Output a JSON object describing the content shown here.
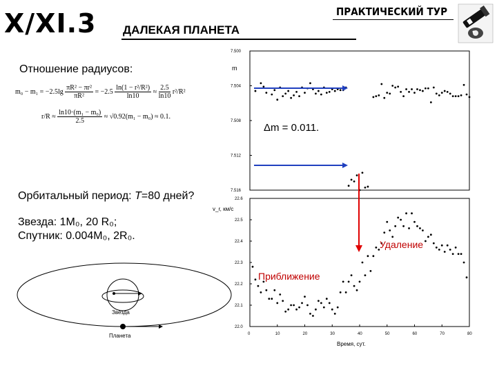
{
  "header": {
    "code": "X/XI.3",
    "title": "ДАЛЕКАЯ ПЛАНЕТА",
    "tour": "ПРАКТИЧЕСКИЙ ТУР"
  },
  "left": {
    "ratio_label": "Отношение радиусов:",
    "formula1_lhs": "m₀ − m₁ = −2.5lg",
    "formula1_mid": "πR² − πr²",
    "formula1_den": "πR²",
    "formula1_eq": "= −2.5",
    "formula1_ln_num": "ln(1 − r²/R²)",
    "formula1_ln_den": "ln10",
    "formula1_approx": "≈",
    "formula1_r_num": "2.5",
    "formula1_r_den": "ln10",
    "formula1_ratio": "r²/R²",
    "formula2_lhs": "r/R ≈",
    "formula2_num": "ln10·(m₁ − m₀)",
    "formula2_den": "2.5",
    "formula2_rhs": "≈ √0.92(m₁ − m₀) ≈ 0.1.",
    "period_prefix": "Орбитальный период: ",
    "period_var": "T",
    "period_value": "=80 дней?",
    "star_line": "Звезда: 1M₀, 20 R₀;",
    "sat_line": "Спутник: 0.004M₀, 2R₀.",
    "diagram_star": "Звезда",
    "diagram_planet": "Планета"
  },
  "chart_data": [
    {
      "type": "scatter",
      "ylabel": "m",
      "ylim": [
        7.5,
        7.516
      ],
      "y_inverted": true,
      "yticks": [
        "7.500",
        "7.504",
        "7.508",
        "7.512",
        "7.516"
      ],
      "annotation": "Δm = 0.011.",
      "points_top": [
        [
          2,
          7.5046
        ],
        [
          4,
          7.5037
        ],
        [
          5,
          7.5041
        ],
        [
          6,
          7.5048
        ],
        [
          8,
          7.505
        ],
        [
          9,
          7.5045
        ],
        [
          10,
          7.5056
        ],
        [
          11,
          7.5042
        ],
        [
          12,
          7.5052
        ],
        [
          13,
          7.5049
        ],
        [
          14,
          7.5046
        ],
        [
          15,
          7.5054
        ],
        [
          16,
          7.5051
        ],
        [
          17,
          7.5047
        ],
        [
          18,
          7.5052
        ],
        [
          19,
          7.5042
        ],
        [
          20,
          7.5048
        ],
        [
          21,
          7.5043
        ],
        [
          22,
          7.5037
        ],
        [
          23,
          7.5044
        ],
        [
          24,
          7.5049
        ],
        [
          25,
          7.5046
        ],
        [
          26,
          7.505
        ],
        [
          27,
          7.5042
        ],
        [
          28,
          7.5048
        ],
        [
          29,
          7.5047
        ],
        [
          30,
          7.5044
        ],
        [
          31,
          7.5046
        ],
        [
          32,
          7.5044
        ],
        [
          33,
          7.5045
        ],
        [
          34,
          7.5045
        ],
        [
          35,
          7.5042
        ],
        [
          45,
          7.5053
        ],
        [
          46,
          7.5052
        ],
        [
          47,
          7.5051
        ],
        [
          48,
          7.5038
        ],
        [
          49,
          7.5054
        ],
        [
          50,
          7.5048
        ],
        [
          51,
          7.5049
        ],
        [
          52,
          7.504
        ],
        [
          53,
          7.5042
        ],
        [
          54,
          7.5041
        ],
        [
          55,
          7.5047
        ],
        [
          56,
          7.5052
        ],
        [
          57,
          7.5044
        ],
        [
          58,
          7.5047
        ],
        [
          59,
          7.5044
        ],
        [
          60,
          7.5048
        ],
        [
          61,
          7.5044
        ],
        [
          62,
          7.5045
        ],
        [
          63,
          7.5046
        ],
        [
          64,
          7.5043
        ],
        [
          65,
          7.5043
        ],
        [
          66,
          7.5059
        ],
        [
          67,
          7.5042
        ],
        [
          68,
          7.5049
        ],
        [
          69,
          7.5051
        ],
        [
          70,
          7.5048
        ],
        [
          71,
          7.5046
        ],
        [
          72,
          7.5047
        ],
        [
          73,
          7.5049
        ],
        [
          74,
          7.5052
        ],
        [
          75,
          7.5052
        ],
        [
          76,
          7.5052
        ],
        [
          77,
          7.5051
        ],
        [
          78,
          7.5039
        ],
        [
          79,
          7.505
        ],
        [
          80,
          7.5053
        ]
      ],
      "points_dip": [
        [
          36,
          7.5155
        ],
        [
          37,
          7.5148
        ],
        [
          38,
          7.515
        ],
        [
          39,
          7.5143
        ],
        [
          40,
          7.516
        ],
        [
          41,
          7.514
        ],
        [
          42,
          7.5157
        ],
        [
          43,
          7.5156
        ]
      ]
    },
    {
      "type": "scatter",
      "ylabel": "v_r, км/с",
      "xlabel": "Время, сут.",
      "xlim": [
        0,
        80
      ],
      "ylim": [
        22.0,
        22.6
      ],
      "xticks": [
        "0",
        "10",
        "20",
        "30",
        "40",
        "50",
        "60",
        "70",
        "80"
      ],
      "yticks": [
        "22.0",
        "22.1",
        "22.2",
        "22.3",
        "22.4",
        "22.5",
        "22.6"
      ],
      "label_recede": "Удаление",
      "label_approach": "Приближение",
      "points": [
        [
          1,
          22.28
        ],
        [
          2,
          22.22
        ],
        [
          3,
          22.19
        ],
        [
          4,
          22.16
        ],
        [
          5,
          22.21
        ],
        [
          6,
          22.17
        ],
        [
          7,
          22.13
        ],
        [
          8,
          22.13
        ],
        [
          9,
          22.17
        ],
        [
          10,
          22.11
        ],
        [
          11,
          22.15
        ],
        [
          12,
          22.12
        ],
        [
          13,
          22.07
        ],
        [
          14,
          22.08
        ],
        [
          15,
          22.1
        ],
        [
          16,
          22.1
        ],
        [
          17,
          22.08
        ],
        [
          18,
          22.09
        ],
        [
          19,
          22.11
        ],
        [
          20,
          22.14
        ],
        [
          21,
          22.1
        ],
        [
          22,
          22.06
        ],
        [
          23,
          22.05
        ],
        [
          24,
          22.08
        ],
        [
          25,
          22.12
        ],
        [
          26,
          22.11
        ],
        [
          27,
          22.09
        ],
        [
          28,
          22.13
        ],
        [
          29,
          22.11
        ],
        [
          30,
          22.08
        ],
        [
          31,
          22.06
        ],
        [
          32,
          22.09
        ],
        [
          33,
          22.16
        ],
        [
          34,
          22.21
        ],
        [
          35,
          22.16
        ],
        [
          36,
          22.21
        ],
        [
          37,
          22.24
        ],
        [
          38,
          22.19
        ],
        [
          39,
          22.17
        ],
        [
          40,
          22.21
        ],
        [
          41,
          22.3
        ],
        [
          42,
          22.24
        ],
        [
          43,
          22.33
        ],
        [
          44,
          22.26
        ],
        [
          45,
          22.33
        ],
        [
          46,
          22.37
        ],
        [
          47,
          22.36
        ],
        [
          48,
          22.39
        ],
        [
          49,
          22.44
        ],
        [
          50,
          22.49
        ],
        [
          51,
          22.45
        ],
        [
          52,
          22.42
        ],
        [
          53,
          22.47
        ],
        [
          54,
          22.51
        ],
        [
          55,
          22.5
        ],
        [
          56,
          22.47
        ],
        [
          57,
          22.53
        ],
        [
          58,
          22.46
        ],
        [
          59,
          22.53
        ],
        [
          60,
          22.49
        ],
        [
          61,
          22.47
        ],
        [
          62,
          22.46
        ],
        [
          63,
          22.45
        ],
        [
          64,
          22.4
        ],
        [
          65,
          22.42
        ],
        [
          66,
          22.43
        ],
        [
          67,
          22.39
        ],
        [
          68,
          22.37
        ],
        [
          69,
          22.36
        ],
        [
          70,
          22.38
        ],
        [
          71,
          22.35
        ],
        [
          72,
          22.38
        ],
        [
          73,
          22.36
        ],
        [
          74,
          22.34
        ],
        [
          75,
          22.37
        ],
        [
          76,
          22.34
        ],
        [
          77,
          22.34
        ],
        [
          78,
          22.3
        ],
        [
          79,
          22.23
        ]
      ]
    }
  ]
}
